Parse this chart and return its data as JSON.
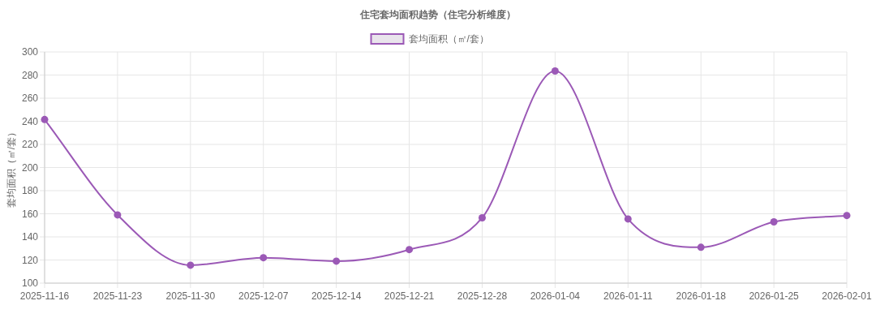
{
  "chart_data": {
    "type": "line",
    "title": "住宅套均面积趋势（住宅分析维度）",
    "ylabel": "套均面积（㎡/套）",
    "categories": [
      "2025-11-16",
      "2025-11-23",
      "2025-11-30",
      "2025-12-07",
      "2025-12-14",
      "2025-12-21",
      "2025-12-28",
      "2026-01-04",
      "2026-01-11",
      "2026-01-18",
      "2026-01-25",
      "2026-02-01"
    ],
    "series": [
      {
        "name": "套均面积（㎡/套）",
        "color": "#9b59b6",
        "values": [
          241.5,
          159,
          115.5,
          122,
          119,
          129,
          156.5,
          283.5,
          155.5,
          131,
          153,
          158.5
        ]
      }
    ],
    "ylim": [
      100,
      300
    ],
    "yticks": [
      100,
      120,
      140,
      160,
      180,
      200,
      220,
      240,
      260,
      280,
      300
    ],
    "grid": true,
    "legend": "top",
    "marker": "circle",
    "line_style": "solid"
  }
}
